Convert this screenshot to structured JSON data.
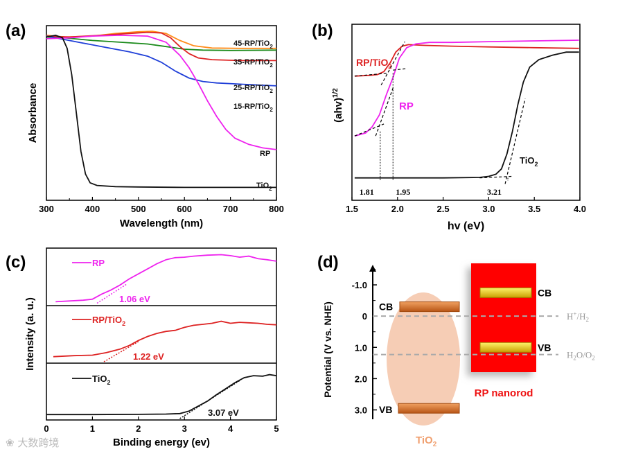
{
  "panels": {
    "a": {
      "label": "(a)"
    },
    "b": {
      "label": "(b)"
    },
    "c": {
      "label": "(c)"
    },
    "d": {
      "label": "(d)"
    }
  },
  "watermark": "❀ 大数跨境",
  "chart_data": [
    {
      "panel": "a",
      "type": "line",
      "xlabel": "Wavelength (nm)",
      "ylabel": "Absorbance",
      "xlim": [
        300,
        800
      ],
      "xticks": [
        300,
        400,
        500,
        600,
        700,
        800
      ],
      "grid": false,
      "series": [
        {
          "name": "45-RP/TiO2",
          "label_main": "45-RP/TiO",
          "label_sub": "2",
          "color": "#ff8c1a",
          "points": [
            [
              300,
              0.945
            ],
            [
              340,
              0.935
            ],
            [
              400,
              0.94
            ],
            [
              450,
              0.955
            ],
            [
              500,
              0.965
            ],
            [
              530,
              0.968
            ],
            [
              560,
              0.955
            ],
            [
              590,
              0.915
            ],
            [
              620,
              0.885
            ],
            [
              660,
              0.872
            ],
            [
              720,
              0.87
            ],
            [
              800,
              0.87
            ]
          ]
        },
        {
          "name": "35-RP/TiO2",
          "label_main": "35-RP/TiO",
          "label_sub": "2",
          "color": "#1a8a1a",
          "points": [
            [
              300,
              0.935
            ],
            [
              340,
              0.93
            ],
            [
              400,
              0.915
            ],
            [
              460,
              0.905
            ],
            [
              520,
              0.895
            ],
            [
              560,
              0.88
            ],
            [
              600,
              0.865
            ],
            [
              640,
              0.86
            ],
            [
              700,
              0.858
            ],
            [
              800,
              0.86
            ]
          ]
        },
        {
          "name": "25-RP/TiO2",
          "label_main": "25-RP/TiO",
          "label_sub": "2",
          "color": "#dd2222",
          "points": [
            [
              300,
              0.94
            ],
            [
              350,
              0.935
            ],
            [
              420,
              0.945
            ],
            [
              480,
              0.955
            ],
            [
              520,
              0.962
            ],
            [
              550,
              0.958
            ],
            [
              570,
              0.93
            ],
            [
              590,
              0.88
            ],
            [
              610,
              0.84
            ],
            [
              630,
              0.815
            ],
            [
              660,
              0.805
            ],
            [
              720,
              0.8
            ],
            [
              800,
              0.8
            ]
          ]
        },
        {
          "name": "15-RP/TiO2",
          "label_main": "15-RP/TiO",
          "label_sub": "2",
          "color": "#1f3fd8",
          "points": [
            [
              300,
              0.94
            ],
            [
              330,
              0.925
            ],
            [
              380,
              0.9
            ],
            [
              430,
              0.875
            ],
            [
              480,
              0.85
            ],
            [
              520,
              0.825
            ],
            [
              550,
              0.79
            ],
            [
              580,
              0.74
            ],
            [
              610,
              0.7
            ],
            [
              640,
              0.68
            ],
            [
              670,
              0.672
            ],
            [
              720,
              0.665
            ],
            [
              800,
              0.655
            ]
          ]
        },
        {
          "name": "RP",
          "label_main": "RP",
          "label_sub": "",
          "color": "#ee22ee",
          "points": [
            [
              300,
              0.925
            ],
            [
              350,
              0.93
            ],
            [
              400,
              0.94
            ],
            [
              460,
              0.945
            ],
            [
              520,
              0.94
            ],
            [
              560,
              0.905
            ],
            [
              590,
              0.83
            ],
            [
              610,
              0.76
            ],
            [
              630,
              0.67
            ],
            [
              650,
              0.57
            ],
            [
              670,
              0.48
            ],
            [
              690,
              0.405
            ],
            [
              710,
              0.355
            ],
            [
              740,
              0.32
            ],
            [
              770,
              0.3
            ],
            [
              800,
              0.29
            ]
          ]
        },
        {
          "name": "TiO2",
          "label_main": "TiO",
          "label_sub": "2",
          "color": "#111111",
          "points": [
            [
              300,
              0.935
            ],
            [
              320,
              0.945
            ],
            [
              335,
              0.93
            ],
            [
              345,
              0.87
            ],
            [
              355,
              0.72
            ],
            [
              365,
              0.5
            ],
            [
              375,
              0.28
            ],
            [
              385,
              0.15
            ],
            [
              395,
              0.1
            ],
            [
              410,
              0.085
            ],
            [
              450,
              0.078
            ],
            [
              500,
              0.076
            ],
            [
              600,
              0.074
            ],
            [
              700,
              0.074
            ],
            [
              800,
              0.074
            ]
          ]
        }
      ]
    },
    {
      "panel": "b",
      "type": "line",
      "xlabel": "hv (eV)",
      "ylabel_main": "(ahv)",
      "ylabel_sup": "1/2",
      "xlim": [
        1.5,
        4.0
      ],
      "xticks": [
        1.5,
        2.0,
        2.5,
        3.0,
        3.5,
        4.0
      ],
      "grid": false,
      "series": [
        {
          "name": "RP/TiO2",
          "label_main": "RP/TiO",
          "label_sub": "2",
          "color": "#dd2222",
          "points": [
            [
              1.53,
              0.7
            ],
            [
              1.7,
              0.705
            ],
            [
              1.78,
              0.71
            ],
            [
              1.85,
              0.73
            ],
            [
              1.92,
              0.79
            ],
            [
              1.98,
              0.86
            ],
            [
              2.05,
              0.9
            ],
            [
              2.12,
              0.91
            ],
            [
              2.3,
              0.905
            ],
            [
              2.6,
              0.9
            ],
            [
              3.0,
              0.895
            ],
            [
              3.5,
              0.89
            ],
            [
              3.99,
              0.885
            ]
          ]
        },
        {
          "name": "RP",
          "label_main": "RP",
          "label_sub": "",
          "color": "#ee22ee",
          "points": [
            [
              1.53,
              0.3
            ],
            [
              1.65,
              0.32
            ],
            [
              1.72,
              0.36
            ],
            [
              1.8,
              0.44
            ],
            [
              1.88,
              0.58
            ],
            [
              1.95,
              0.69
            ],
            [
              2.02,
              0.82
            ],
            [
              2.1,
              0.89
            ],
            [
              2.2,
              0.915
            ],
            [
              2.35,
              0.925
            ],
            [
              2.6,
              0.925
            ],
            [
              3.0,
              0.93
            ],
            [
              3.5,
              0.935
            ],
            [
              3.99,
              0.94
            ]
          ]
        },
        {
          "name": "TiO2",
          "label_main": "TiO",
          "label_sub": "2",
          "color": "#111111",
          "points": [
            [
              1.53,
              0.02
            ],
            [
              2.5,
              0.02
            ],
            [
              2.9,
              0.023
            ],
            [
              3.0,
              0.03
            ],
            [
              3.08,
              0.045
            ],
            [
              3.14,
              0.08
            ],
            [
              3.2,
              0.18
            ],
            [
              3.26,
              0.33
            ],
            [
              3.32,
              0.51
            ],
            [
              3.38,
              0.66
            ],
            [
              3.45,
              0.76
            ],
            [
              3.55,
              0.81
            ],
            [
              3.7,
              0.84
            ],
            [
              3.85,
              0.86
            ],
            [
              3.99,
              0.86
            ]
          ]
        }
      ],
      "bandgap_labels": [
        {
          "text": "1.81",
          "x": 1.81
        },
        {
          "text": "1.95",
          "x": 1.95
        },
        {
          "text": "3.21",
          "x": 3.21
        }
      ]
    },
    {
      "panel": "c",
      "type": "line",
      "xlabel": "Binding energy (ev)",
      "ylabel": "Intensity  (a. u.)",
      "xlim": [
        0,
        5
      ],
      "xticks": [
        0,
        1,
        2,
        3,
        4,
        5
      ],
      "grid": false,
      "series": [
        {
          "name": "RP",
          "label_main": "RP",
          "label_sub": "",
          "color": "#ee22ee",
          "row": 0,
          "edge_label": "1.06 eV",
          "points": [
            [
              0.2,
              0.05
            ],
            [
              0.8,
              0.08
            ],
            [
              1.0,
              0.1
            ],
            [
              1.2,
              0.2
            ],
            [
              1.4,
              0.28
            ],
            [
              1.6,
              0.38
            ],
            [
              1.8,
              0.5
            ],
            [
              2.0,
              0.6
            ],
            [
              2.2,
              0.7
            ],
            [
              2.4,
              0.8
            ],
            [
              2.6,
              0.88
            ],
            [
              2.8,
              0.92
            ],
            [
              3.0,
              0.93
            ],
            [
              3.2,
              0.95
            ],
            [
              3.5,
              0.97
            ],
            [
              3.8,
              0.98
            ],
            [
              4.0,
              0.96
            ],
            [
              4.2,
              0.93
            ],
            [
              4.4,
              0.95
            ],
            [
              4.6,
              0.9
            ],
            [
              4.8,
              0.88
            ],
            [
              5.0,
              0.85
            ]
          ]
        },
        {
          "name": "RP/TiO2",
          "label_main": "RP/TiO",
          "label_sub": "2",
          "color": "#dd2222",
          "row": 1,
          "edge_label": "1.22 eV",
          "points": [
            [
              0.15,
              0.1
            ],
            [
              0.6,
              0.12
            ],
            [
              1.0,
              0.13
            ],
            [
              1.3,
              0.18
            ],
            [
              1.6,
              0.25
            ],
            [
              1.8,
              0.32
            ],
            [
              2.0,
              0.42
            ],
            [
              2.2,
              0.5
            ],
            [
              2.4,
              0.56
            ],
            [
              2.6,
              0.6
            ],
            [
              2.8,
              0.62
            ],
            [
              3.0,
              0.68
            ],
            [
              3.2,
              0.72
            ],
            [
              3.4,
              0.74
            ],
            [
              3.6,
              0.76
            ],
            [
              3.8,
              0.8
            ],
            [
              4.0,
              0.76
            ],
            [
              4.2,
              0.78
            ],
            [
              4.4,
              0.77
            ],
            [
              4.6,
              0.76
            ],
            [
              4.8,
              0.74
            ],
            [
              5.0,
              0.73
            ]
          ]
        },
        {
          "name": "TiO2",
          "label_main": "TiO",
          "label_sub": "2",
          "color": "#111111",
          "row": 2,
          "edge_label": "3.07 eV",
          "points": [
            [
              0.0,
              0.08
            ],
            [
              1.0,
              0.08
            ],
            [
              2.0,
              0.085
            ],
            [
              2.6,
              0.09
            ],
            [
              2.9,
              0.1
            ],
            [
              3.1,
              0.15
            ],
            [
              3.3,
              0.25
            ],
            [
              3.5,
              0.35
            ],
            [
              3.7,
              0.48
            ],
            [
              3.9,
              0.6
            ],
            [
              4.1,
              0.72
            ],
            [
              4.3,
              0.82
            ],
            [
              4.5,
              0.86
            ],
            [
              4.7,
              0.85
            ],
            [
              4.85,
              0.88
            ],
            [
              5.0,
              0.86
            ]
          ]
        }
      ]
    },
    {
      "panel": "d",
      "type": "diagram",
      "ylabel": "Potential (V vs. NHE)",
      "ylim": [
        -1.6,
        3.3
      ],
      "yticks": [
        "-1.0",
        "0",
        "1.0",
        "2.0",
        "3.0"
      ],
      "ytick_values": [
        -1.0,
        0,
        1.0,
        2.0,
        3.0
      ],
      "tio2": {
        "label_main": "TiO",
        "label_sub": "2",
        "cb": -0.3,
        "vb": 2.95,
        "cb_label": "CB",
        "vb_label": "VB"
      },
      "rp": {
        "label": "RP nanorod",
        "cb": -0.75,
        "vb": 1.0,
        "cb_label": "CB",
        "vb_label": "VB"
      },
      "references": [
        {
          "label_main": "H",
          "label_sup": "+",
          "label_rest": "/H",
          "label_sub": "2",
          "value": 0.0
        },
        {
          "label_main": "H",
          "label_sub": "2",
          "label_rest": "O/O",
          "label_sub2": "2",
          "value": 1.23
        }
      ],
      "colors": {
        "tio2_fill": "#f5c8ad",
        "rp_fill": "#ff0000",
        "band": "#d8722a",
        "band_rp": "#e8c400"
      }
    }
  ]
}
